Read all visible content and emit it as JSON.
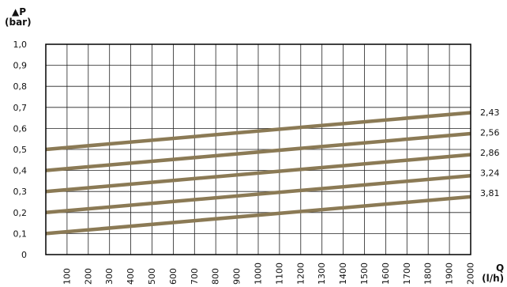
{
  "chart_data": {
    "type": "line",
    "ylabel": "▲P",
    "yunit": "(bar)",
    "xlabel": "Q",
    "xunit": "(l/h)",
    "xlim": [
      0,
      2000
    ],
    "ylim": [
      0,
      1.0
    ],
    "x_ticks": [
      100,
      200,
      300,
      400,
      500,
      600,
      700,
      800,
      900,
      1000,
      1100,
      1200,
      1300,
      1400,
      1500,
      1600,
      1700,
      1800,
      1900,
      2000
    ],
    "x_tick_labels": [
      "100",
      "200",
      "300",
      "400",
      "500",
      "600",
      "700",
      "800",
      "900",
      "1000",
      "1100",
      "1200",
      "1300",
      "1400",
      "1500",
      "1600",
      "1700",
      "1800",
      "1900",
      "2000"
    ],
    "y_ticks": [
      0,
      0.1,
      0.2,
      0.3,
      0.4,
      0.5,
      0.6,
      0.7,
      0.8,
      0.9,
      1.0
    ],
    "y_tick_labels": [
      "0",
      "0,1",
      "0,2",
      "0,3",
      "0,4",
      "0,5",
      "0,6",
      "0,7",
      "0,8",
      "0,9",
      "1,0"
    ],
    "grid": true,
    "series": [
      {
        "name": "2,43",
        "x": [
          0,
          2000
        ],
        "y": [
          0.5,
          0.675
        ]
      },
      {
        "name": "2,56",
        "x": [
          0,
          2000
        ],
        "y": [
          0.4,
          0.575
        ]
      },
      {
        "name": "2,86",
        "x": [
          0,
          2000
        ],
        "y": [
          0.3,
          0.475
        ]
      },
      {
        "name": "3,24",
        "x": [
          0,
          2000
        ],
        "y": [
          0.2,
          0.375
        ]
      },
      {
        "name": "3,81",
        "x": [
          0,
          2000
        ],
        "y": [
          0.1,
          0.275
        ]
      }
    ],
    "line_color": "#8b7a55"
  }
}
